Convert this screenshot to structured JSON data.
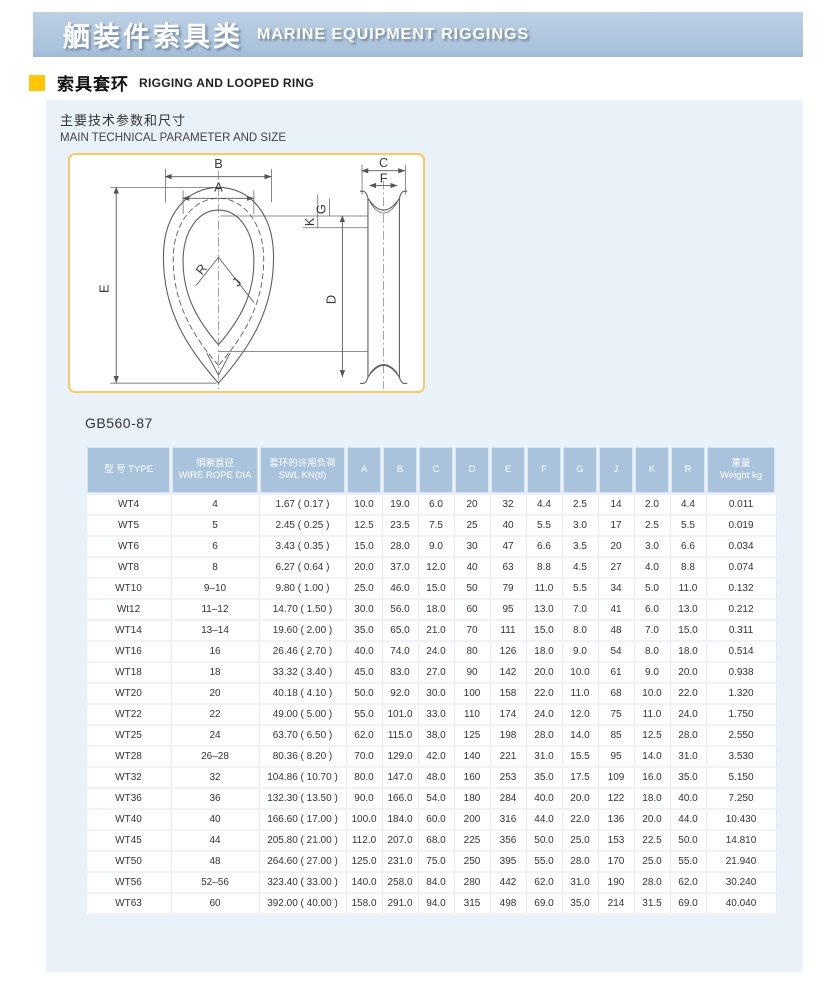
{
  "header": {
    "title_zh": "舾装件索具类",
    "title_en": "MARINE EQUIPMENT RIGGINGS"
  },
  "section": {
    "title_zh": "索具套环",
    "title_en": "RIGGING AND LOOPED RING"
  },
  "intro": {
    "zh": "主要技术参数和尺寸",
    "en": "MAIN TECHNICAL PARAMETER AND SIZE"
  },
  "standard_code": "GB560-87",
  "colors": {
    "banner_blue": "#a9c2db",
    "panel_blue": "#e9f1f9",
    "table_header_blue": "#a9c3dc",
    "accent_yellow": "#ffc608",
    "diagram_border": "#f6ca67"
  },
  "diagram": {
    "labels": [
      "B",
      "A",
      "E",
      "R",
      "J",
      "G",
      "K",
      "C",
      "F",
      "D"
    ]
  },
  "table": {
    "columns": [
      {
        "lines": [
          "型 号 TYPE"
        ]
      },
      {
        "lines": [
          "钢索直径",
          "WIRE ROPE DIA"
        ]
      },
      {
        "lines": [
          "套环的许用负荷",
          "SWL KN(tf)"
        ]
      },
      {
        "lines": [
          "A"
        ]
      },
      {
        "lines": [
          "B"
        ]
      },
      {
        "lines": [
          "C"
        ]
      },
      {
        "lines": [
          "D"
        ]
      },
      {
        "lines": [
          "E"
        ]
      },
      {
        "lines": [
          "F"
        ]
      },
      {
        "lines": [
          "G"
        ]
      },
      {
        "lines": [
          "J"
        ]
      },
      {
        "lines": [
          "K"
        ]
      },
      {
        "lines": [
          "R"
        ]
      },
      {
        "lines": [
          "重量",
          "Weight kg"
        ]
      }
    ],
    "rows": [
      [
        "WT4",
        "4",
        "1.67 ( 0.17 )",
        "10.0",
        "19.0",
        "6.0",
        "20",
        "32",
        "4.4",
        "2.5",
        "14",
        "2.0",
        "4.4",
        "0.011"
      ],
      [
        "WT5",
        "5",
        "2.45 ( 0.25 )",
        "12.5",
        "23.5",
        "7.5",
        "25",
        "40",
        "5.5",
        "3.0",
        "17",
        "2.5",
        "5.5",
        "0.019"
      ],
      [
        "WT6",
        "6",
        "3.43 ( 0.35 )",
        "15.0",
        "28.0",
        "9.0",
        "30",
        "47",
        "6.6",
        "3.5",
        "20",
        "3.0",
        "6.6",
        "0.034"
      ],
      [
        "WT8",
        "8",
        "6.27 ( 0.64 )",
        "20.0",
        "37.0",
        "12.0",
        "40",
        "63",
        "8.8",
        "4.5",
        "27",
        "4.0",
        "8.8",
        "0.074"
      ],
      [
        "WT10",
        "9–10",
        "9.80 ( 1.00 )",
        "25.0",
        "46.0",
        "15.0",
        "50",
        "79",
        "11.0",
        "5.5",
        "34",
        "5.0",
        "11.0",
        "0.132"
      ],
      [
        "Wt12",
        "11–12",
        "14.70 ( 1.50 )",
        "30.0",
        "56.0",
        "18.0",
        "60",
        "95",
        "13.0",
        "7.0",
        "41",
        "6.0",
        "13.0",
        "0.212"
      ],
      [
        "WT14",
        "13–14",
        "19.60 ( 2.00 )",
        "35.0",
        "65.0",
        "21.0",
        "70",
        "111",
        "15.0",
        "8.0",
        "48",
        "7.0",
        "15.0",
        "0.311"
      ],
      [
        "WT16",
        "16",
        "26.46 ( 2.70 )",
        "40.0",
        "74.0",
        "24.0",
        "80",
        "126",
        "18.0",
        "9.0",
        "54",
        "8.0",
        "18.0",
        "0.514"
      ],
      [
        "WT18",
        "18",
        "33.32 ( 3.40 )",
        "45.0",
        "83.0",
        "27.0",
        "90",
        "142",
        "20.0",
        "10.0",
        "61",
        "9.0",
        "20.0",
        "0.938"
      ],
      [
        "WT20",
        "20",
        "40.18 ( 4.10 )",
        "50.0",
        "92.0",
        "30.0",
        "100",
        "158",
        "22.0",
        "11.0",
        "68",
        "10.0",
        "22.0",
        "1.320"
      ],
      [
        "WT22",
        "22",
        "49.00 ( 5.00 )",
        "55.0",
        "101.0",
        "33.0",
        "110",
        "174",
        "24.0",
        "12.0",
        "75",
        "11.0",
        "24.0",
        "1.750"
      ],
      [
        "WT25",
        "24",
        "63.70 ( 6.50 )",
        "62.0",
        "115.0",
        "38.0",
        "125",
        "198",
        "28.0",
        "14.0",
        "85",
        "12.5",
        "28.0",
        "2.550"
      ],
      [
        "WT28",
        "26–28",
        "80.36 ( 8.20 )",
        "70.0",
        "129.0",
        "42.0",
        "140",
        "221",
        "31.0",
        "15.5",
        "95",
        "14.0",
        "31.0",
        "3.530"
      ],
      [
        "WT32",
        "32",
        "104.86 ( 10.70 )",
        "80.0",
        "147.0",
        "48.0",
        "160",
        "253",
        "35.0",
        "17.5",
        "109",
        "16.0",
        "35.0",
        "5.150"
      ],
      [
        "WT36",
        "36",
        "132.30 ( 13.50 )",
        "90.0",
        "166.0",
        "54.0",
        "180",
        "284",
        "40.0",
        "20.0",
        "122",
        "18.0",
        "40.0",
        "7.250"
      ],
      [
        "WT40",
        "40",
        "166.60 ( 17.00 )",
        "100.0",
        "184.0",
        "60.0",
        "200",
        "316",
        "44.0",
        "22.0",
        "136",
        "20.0",
        "44.0",
        "10.430"
      ],
      [
        "WT45",
        "44",
        "205.80 ( 21.00 )",
        "112.0",
        "207.0",
        "68.0",
        "225",
        "356",
        "50.0",
        "25.0",
        "153",
        "22.5",
        "50.0",
        "14.810"
      ],
      [
        "WT50",
        "48",
        "264.60 ( 27.00 )",
        "125.0",
        "231.0",
        "75.0",
        "250",
        "395",
        "55.0",
        "28.0",
        "170",
        "25.0",
        "55.0",
        "21.940"
      ],
      [
        "WT56",
        "52–56",
        "323.40 ( 33.00 )",
        "140.0",
        "258.0",
        "84.0",
        "280",
        "442",
        "62.0",
        "31.0",
        "190",
        "28.0",
        "62.0",
        "30.240"
      ],
      [
        "WT63",
        "60",
        "392.00 ( 40.00 )",
        "158.0",
        "291.0",
        "94.0",
        "315",
        "498",
        "69.0",
        "35.0",
        "214",
        "31.5",
        "69.0",
        "40.040"
      ]
    ]
  }
}
